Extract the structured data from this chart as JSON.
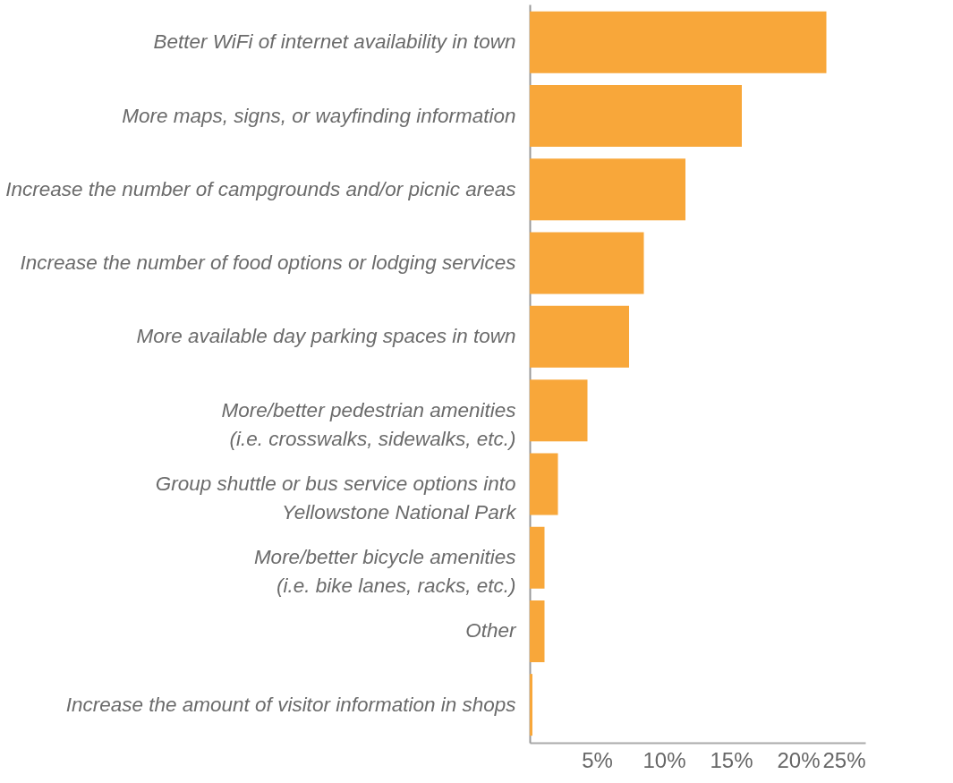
{
  "chart_data": {
    "type": "bar",
    "orientation": "horizontal",
    "categories": [
      "Better WiFi of internet availability in town",
      "More maps, signs, or wayfinding information",
      "Increase the number of campgrounds and/or picnic areas",
      "Increase the number of food options or lodging services",
      "More available day parking spaces in town",
      "More/better pedestrian amenities\n(i.e. crosswalks, sidewalks, etc.)",
      "Group shuttle or bus service options into\nYellowstone National Park",
      "More/better bicycle amenities\n(i.e. bike lanes, racks, etc.)",
      "Other",
      "Increase the amount of visitor information in shops"
    ],
    "values": [
      22.1,
      15.8,
      11.6,
      8.5,
      7.4,
      4.3,
      2.1,
      1.1,
      1.1,
      0.2
    ],
    "color": "#f8a73a",
    "xlim": [
      0,
      25
    ],
    "xticks": [
      {
        "value": 5,
        "label": "5%"
      },
      {
        "value": 10,
        "label": "10%"
      },
      {
        "value": 15,
        "label": "15%"
      },
      {
        "value": 20,
        "label": "20%"
      },
      {
        "value": 25,
        "label": "25%"
      }
    ],
    "grid": false
  }
}
